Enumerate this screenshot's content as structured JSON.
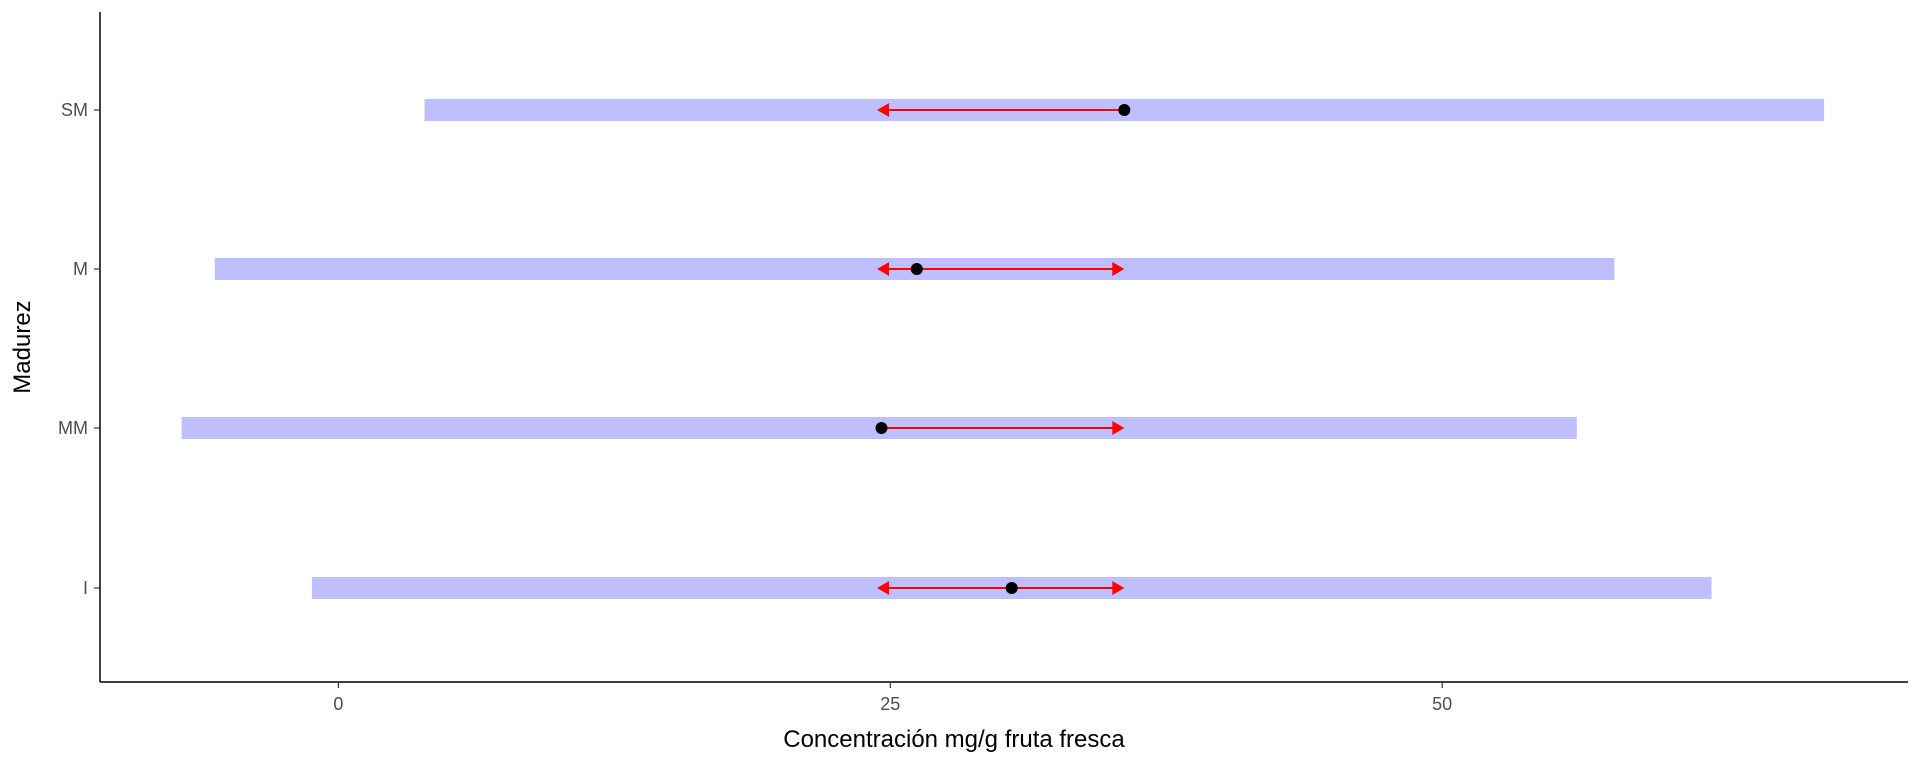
{
  "chart_data": {
    "type": "interval",
    "xlabel": "Concentración mg/g fruta fresca",
    "ylabel": "Madurez",
    "xlim": [
      -10.8,
      71.1
    ],
    "x_ticks": [
      0,
      25,
      50
    ],
    "x_tick_labels": [
      "0",
      "25",
      "50"
    ],
    "categories": [
      "SM",
      "M",
      "MM",
      "I"
    ],
    "grid": false,
    "legend": "none",
    "rows": [
      {
        "category": "SM",
        "interval": [
          3.9,
          67.3
        ],
        "point": 35.6,
        "arrow_from": 35.6,
        "arrow_to": 24.4,
        "arrow_heads": [
          "end"
        ]
      },
      {
        "category": "M",
        "interval": [
          -5.6,
          57.8
        ],
        "point": 26.2,
        "arrow_from": 24.4,
        "arrow_to": 35.6,
        "arrow_heads": [
          "start",
          "end"
        ]
      },
      {
        "category": "MM",
        "interval": [
          -7.1,
          56.1
        ],
        "point": 24.6,
        "arrow_from": 24.6,
        "arrow_to": 35.6,
        "arrow_heads": [
          "end"
        ]
      },
      {
        "category": "I",
        "interval": [
          -1.2,
          62.2
        ],
        "point": 30.5,
        "arrow_from": 24.4,
        "arrow_to": 35.6,
        "arrow_heads": [
          "start",
          "end"
        ]
      }
    ],
    "colors": {
      "interval_bar": "#bfbfff",
      "arrow": "#ff0000",
      "point": "#000000",
      "axis": "#000000",
      "tick_text": "#4d4d4d",
      "title_text": "#000000"
    }
  }
}
